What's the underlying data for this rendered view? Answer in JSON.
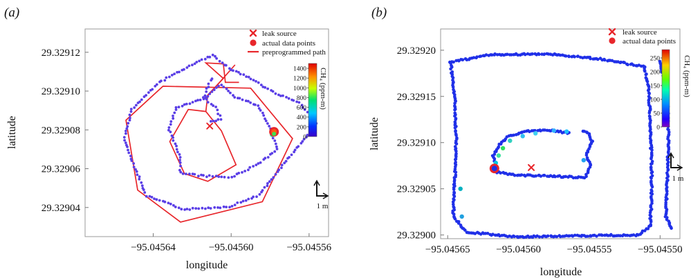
{
  "chart_data": [
    {
      "panel_label": "(a)",
      "type": "scatter",
      "xlabel": "longitude",
      "ylabel": "latitude",
      "xlim": [
        -95.045675,
        -95.04555
      ],
      "ylim": [
        29.329025,
        29.329132
      ],
      "xticks": [
        -95.04564,
        -95.0456,
        -95.04556
      ],
      "xtick_labels": [
        "−95.04564",
        "−95.04560",
        "−95.04556"
      ],
      "yticks": [
        29.32904,
        29.32906,
        29.32908,
        29.3291,
        29.32912
      ],
      "ytick_labels": [
        "29.32904",
        "29.32906",
        "29.32908",
        "29.32910",
        "29.32912"
      ],
      "legend_position": "top-right",
      "legend": [
        {
          "label": "leak source",
          "marker": "x",
          "color": "#e8262b"
        },
        {
          "label": "actual data points",
          "marker": "circle",
          "color": "#e8262b"
        },
        {
          "label": "preprogrammed path",
          "marker": "line",
          "color": "#e8262b"
        }
      ],
      "colorbar": {
        "label": "CH₄ (ppm-m)",
        "min": 0,
        "max": 1500,
        "ticks": [
          0,
          200,
          400,
          600,
          800,
          1000,
          1200,
          1400
        ],
        "tick_labels": [
          "0",
          "200",
          "400",
          "600",
          "800",
          "1000",
          "1200",
          "1400"
        ]
      },
      "scale_bar": "1 m",
      "leak_source": {
        "x": -95.045611,
        "y": 29.329082
      },
      "max_point": {
        "x": -95.045578,
        "y": 29.329079
      },
      "paths": [
        {
          "name": "outer_path",
          "closed": true,
          "points": [
            [
              -95.045635,
              29.3291025
            ],
            [
              -95.045654,
              29.329085
            ],
            [
              -95.045648,
              29.329049
            ],
            [
              -95.045626,
              29.3290325
            ],
            [
              -95.045584,
              29.329043
            ],
            [
              -95.0455685,
              29.3290755
            ],
            [
              -95.04559,
              29.3291015
            ]
          ]
        },
        {
          "name": "inner_path",
          "closed": true,
          "points": [
            [
              -95.045622,
              29.3290905
            ],
            [
              -95.0456315,
              29.329074
            ],
            [
              -95.045624,
              29.3290575
            ],
            [
              -95.045612,
              29.3290535
            ],
            [
              -95.0455975,
              29.329062
            ],
            [
              -95.045605,
              29.3290795
            ],
            [
              -95.045613,
              29.3290895
            ]
          ]
        },
        {
          "name": "top_segment_1",
          "closed": false,
          "points": [
            [
              -95.045613,
              29.3290895
            ],
            [
              -95.045612,
              29.329098
            ],
            [
              -95.045604,
              29.3291065
            ],
            [
              -95.045613,
              29.3291145
            ],
            [
              -95.045604,
              29.329114
            ],
            [
              -95.045603,
              29.3291045
            ],
            [
              -95.045596,
              29.3291045
            ]
          ]
        },
        {
          "name": "top_segment_2",
          "closed": false,
          "points": [
            [
              -95.045613,
              29.3290965
            ],
            [
              -95.045598,
              29.3291135
            ]
          ]
        }
      ],
      "traces": [
        {
          "name": "outer",
          "points": [
            [
              -95.04562,
              29.3291135
            ],
            [
              -95.045637,
              29.3291045
            ],
            [
              -95.045651,
              29.3290905
            ],
            [
              -95.045655,
              29.329075
            ],
            [
              -95.0456485,
              29.3290585
            ],
            [
              -95.0456435,
              29.329046
            ],
            [
              -95.045624,
              29.329039
            ],
            [
              -95.045601,
              29.3290405
            ],
            [
              -95.0455855,
              29.3290465
            ],
            [
              -95.0455745,
              29.3290605
            ],
            [
              -95.0455625,
              29.329075
            ],
            [
              -95.045556,
              29.3290835
            ],
            [
              -95.045565,
              29.329094
            ],
            [
              -95.0455785,
              29.3290995
            ],
            [
              -95.045591,
              29.329107
            ],
            [
              -95.0456,
              29.329111
            ],
            [
              -95.0456095,
              29.3291185
            ],
            [
              -95.04562,
              29.3291135
            ]
          ]
        },
        {
          "name": "inner",
          "points": [
            [
              -95.045605,
              29.3291035
            ],
            [
              -95.045613,
              29.3290965
            ],
            [
              -95.045628,
              29.3290915
            ],
            [
              -95.045632,
              29.32908
            ],
            [
              -95.045626,
              29.329066
            ],
            [
              -95.045626,
              29.329058
            ],
            [
              -95.045617,
              29.3290565
            ],
            [
              -95.0456,
              29.3290555
            ],
            [
              -95.045586,
              29.3290625
            ],
            [
              -95.0455765,
              29.32907
            ],
            [
              -95.045579,
              29.329079
            ],
            [
              -95.045586,
              29.3290925
            ],
            [
              -95.045598,
              29.329097
            ],
            [
              -95.045605,
              29.3291035
            ]
          ]
        },
        {
          "name": "center",
          "points": [
            [
              -95.04561,
              29.3291065
            ],
            [
              -95.045612,
              29.3291025
            ],
            [
              -95.045614,
              29.3290965
            ],
            [
              -95.045608,
              29.3290915
            ],
            [
              -95.045605,
              29.3290855
            ],
            [
              -95.045612,
              29.329084
            ]
          ]
        }
      ]
    },
    {
      "panel_label": "(b)",
      "type": "scatter",
      "xlabel": "longitude",
      "ylabel": "latitude",
      "xlim": [
        -95.045655,
        -95.045486
      ],
      "ylim": [
        29.328996,
        29.329223
      ],
      "xticks": [
        -95.04565,
        -95.0456,
        -95.04555,
        -95.0455
      ],
      "xtick_labels": [
        "−95.04565",
        "−95.04560",
        "−95.04555",
        "−95.04550"
      ],
      "yticks": [
        29.329,
        29.32905,
        29.3291,
        29.32915,
        29.3292
      ],
      "ytick_labels": [
        "29.32900",
        "29.32905",
        "29.32910",
        "29.32915",
        "29.32920"
      ],
      "legend_position": "top-right",
      "legend": [
        {
          "label": "leak source",
          "marker": "x",
          "color": "#e8262b"
        },
        {
          "label": "actual data points",
          "marker": "circle",
          "color": "#e8262b"
        }
      ],
      "colorbar": {
        "label": "CH₄ (ppm-m)",
        "min": 0,
        "max": 280,
        "ticks": [
          0,
          50,
          100,
          150,
          200,
          250
        ],
        "tick_labels": [
          "0",
          "50",
          "100",
          "150",
          "200",
          "250"
        ]
      },
      "scale_bar": "1 m",
      "leak_source": {
        "x": -95.045591,
        "y": 29.329073
      },
      "max_point": {
        "x": -95.045617,
        "y": 29.329072
      },
      "traces": [
        {
          "name": "outer_loop",
          "points": [
            [
              -95.045648,
              29.329187
            ],
            [
              -95.045645,
              29.32915
            ],
            [
              -95.045644,
              29.3291
            ],
            [
              -95.045645,
              29.32906
            ],
            [
              -95.045646,
              29.32902
            ],
            [
              -95.045637,
              29.329003
            ],
            [
              -95.0456,
              29.328998
            ],
            [
              -95.04556,
              29.328999
            ],
            [
              -95.045515,
              29.329
            ],
            [
              -95.045507,
              29.32901
            ],
            [
              -95.045506,
              29.32904
            ],
            [
              -95.045506,
              29.32908
            ],
            [
              -95.045507,
              29.32912
            ],
            [
              -95.045508,
              29.32916
            ],
            [
              -95.045511,
              29.329182
            ],
            [
              -95.04554,
              29.32919
            ],
            [
              -95.04558,
              29.329196
            ],
            [
              -95.04562,
              29.329195
            ],
            [
              -95.045648,
              29.329187
            ]
          ]
        },
        {
          "name": "right_arm",
          "points": [
            [
              -95.0455,
              29.329188
            ],
            [
              -95.045495,
              29.32915
            ],
            [
              -95.045494,
              29.3291
            ],
            [
              -95.045495,
              29.32906
            ],
            [
              -95.045496,
              29.32902
            ],
            [
              -95.045491,
              29.329005
            ]
          ]
        },
        {
          "name": "inner_loop",
          "points": [
            [
              -95.045564,
              29.32911
            ],
            [
              -95.04558,
              29.329114
            ],
            [
              -95.045597,
              29.329112
            ],
            [
              -95.045608,
              29.329106
            ],
            [
              -95.045614,
              29.329096
            ],
            [
              -95.045618,
              29.329086
            ],
            [
              -95.045616,
              29.329076
            ],
            [
              -95.045615,
              29.329068
            ],
            [
              -95.045605,
              29.329065
            ],
            [
              -95.045585,
              29.329064
            ],
            [
              -95.045565,
              29.329063
            ],
            [
              -95.045553,
              29.329062
            ],
            [
              -95.045549,
              29.329075
            ],
            [
              -95.045552,
              29.329088
            ],
            [
              -95.045548,
              29.329102
            ],
            [
              -95.045551,
              29.329111
            ],
            [
              -95.045556,
              29.329113
            ]
          ]
        }
      ]
    }
  ]
}
